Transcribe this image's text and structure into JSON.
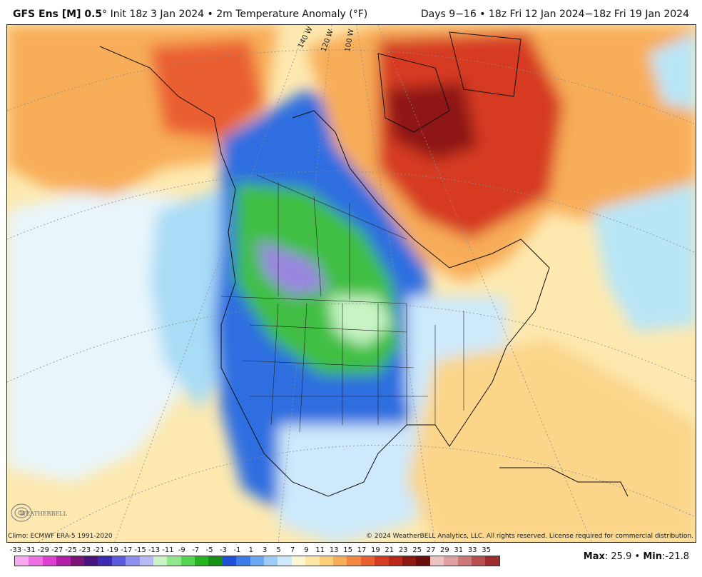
{
  "header": {
    "model": "GFS Ens [M] 0.5",
    "degree": "°",
    "init": "Init 18z 3 Jan 2024",
    "bullet": "•",
    "field": "2m Temperature Anomaly (°F)",
    "period": "Days 9−16",
    "valid_range": "18z Fri 12 Jan 2024−18z Fri 19 Jan 2024"
  },
  "map": {
    "longitude_labels": [
      "140 W",
      "120 W",
      "100 W"
    ],
    "regions": {
      "alaska": "warm anomaly",
      "western_canada_and_plains": "cold anomaly",
      "eastern_canada": "strong warm anomaly",
      "southeast_us_and_atlantic": "mild warm anomaly"
    }
  },
  "footer": {
    "climo": "Climo: ECMWF ERA-5 1991-2020",
    "copyright": "© 2024 WeatherBELL Analytics, LLC. All rights reserved. License required for commercial distribution.",
    "logo_text": "WEATHERBELL"
  },
  "legend": {
    "labels": [
      "-33",
      "-31",
      "-29",
      "-27",
      "-25",
      "-23",
      "-21",
      "-19",
      "-17",
      "-15",
      "-13",
      "-11",
      "-9",
      "-7",
      "-5",
      "-3",
      "-1",
      "1",
      "3",
      "5",
      "7",
      "9",
      "11",
      "13",
      "15",
      "17",
      "19",
      "21",
      "23",
      "25",
      "27",
      "29",
      "31",
      "33",
      "35"
    ],
    "colors": [
      "#f7a8f0",
      "#ee6fe4",
      "#dd3fd2",
      "#b21fa6",
      "#7c1478",
      "#4a1480",
      "#3a2ab4",
      "#5a5ade",
      "#8d8ef0",
      "#b7b8f6",
      "#c9f4c6",
      "#8fe88b",
      "#55d451",
      "#22b51e",
      "#159015",
      "#1f52d8",
      "#3b7ce8",
      "#6aa6f2",
      "#9dcdf8",
      "#cde9fb",
      "#fdf6d2",
      "#fde7a6",
      "#fbcf7a",
      "#f8ad59",
      "#f38640",
      "#ea5f30",
      "#d63a22",
      "#b9261a",
      "#8e1812",
      "#6a0e0c",
      "#ecc3c3",
      "#dea0a0",
      "#cc7878",
      "#b84f50",
      "#9d2d2f"
    ],
    "label_note": "°F"
  },
  "stats": {
    "max_label": "Max",
    "max_value": "25.9",
    "separator": "•",
    "min_label": "Min",
    "min_value": "-21.8"
  },
  "colors": {
    "cold_deep": "#7a5cc8",
    "cold_green": "#3fbf42",
    "cold_blue": "#2f6ee0",
    "cool_light": "#a9dcf6",
    "warm_light": "#fde7a6",
    "warm_orange": "#f8ad59",
    "warm_red": "#d63a22",
    "warm_dark": "#8e1812"
  }
}
